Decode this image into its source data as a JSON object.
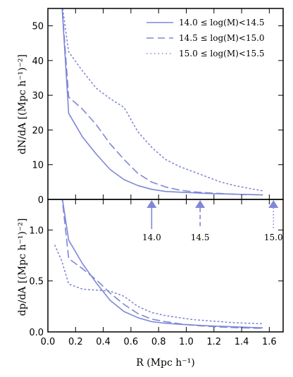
{
  "chart_data": [
    {
      "type": "line",
      "panel": "top",
      "ylabel": "dN/dA [(Mpc h⁻¹)⁻²]",
      "xlim": [
        0.0,
        1.7
      ],
      "ylim": [
        0,
        55
      ],
      "yticks": [
        "0",
        "10",
        "20",
        "30",
        "40",
        "50"
      ],
      "grid": false,
      "legend_position": "top-right",
      "color": "#7f87d6",
      "series": [
        {
          "name": "14.0 ≤ log(M)<14.5",
          "style": "solid",
          "x": [
            0.1,
            0.15,
            0.25,
            0.35,
            0.45,
            0.55,
            0.65,
            0.75,
            0.85,
            0.95,
            1.05,
            1.15,
            1.25,
            1.35,
            1.45,
            1.55
          ],
          "y": [
            57,
            24.8,
            18.0,
            13.0,
            8.6,
            5.7,
            4.0,
            2.9,
            2.3,
            2.1,
            1.9,
            1.7,
            1.6,
            1.5,
            1.4,
            1.3
          ]
        },
        {
          "name": "14.5 ≤ log(M)<15.0",
          "style": "dashed",
          "x": [
            0.1,
            0.15,
            0.25,
            0.35,
            0.45,
            0.55,
            0.65,
            0.75,
            0.85,
            0.95,
            1.05,
            1.15,
            1.25,
            1.35,
            1.45,
            1.55
          ],
          "y": [
            57,
            29.5,
            26.0,
            21.5,
            16.0,
            11.5,
            7.5,
            5.0,
            3.6,
            2.7,
            2.2,
            1.9,
            1.7,
            1.5,
            1.4,
            1.3
          ]
        },
        {
          "name": "15.0 ≤ log(M)<15.5",
          "style": "dotted",
          "x": [
            0.1,
            0.15,
            0.25,
            0.35,
            0.45,
            0.55,
            0.65,
            0.75,
            0.85,
            0.95,
            1.05,
            1.15,
            1.25,
            1.35,
            1.45,
            1.55
          ],
          "y": [
            57,
            42.5,
            37.0,
            32.0,
            29.0,
            26.5,
            19.5,
            15.0,
            11.5,
            9.5,
            8.0,
            6.5,
            5.0,
            4.0,
            3.2,
            2.5
          ]
        }
      ],
      "markers": [
        {
          "x": 0.75,
          "label": "14.0",
          "style": "solid"
        },
        {
          "x": 1.1,
          "label": "14.5",
          "style": "dashed"
        },
        {
          "x": 1.63,
          "label": "15.0",
          "style": "dotted"
        }
      ]
    },
    {
      "type": "line",
      "panel": "bottom",
      "xlabel": "R (Mpc h⁻¹)",
      "ylabel": "dp/dA [(Mpc h⁻¹)⁻²]",
      "xlim": [
        0.0,
        1.7
      ],
      "ylim": [
        0,
        1.3
      ],
      "xticks": [
        "0.0",
        "0.2",
        "0.4",
        "0.6",
        "0.8",
        "1.0",
        "1.2",
        "1.4",
        "1.6"
      ],
      "yticks": [
        "0.0",
        "0.5",
        "1.0"
      ],
      "grid": false,
      "color": "#7f87d6",
      "series": [
        {
          "style": "solid",
          "x": [
            0.1,
            0.15,
            0.25,
            0.35,
            0.45,
            0.55,
            0.65,
            0.75,
            0.85,
            0.95,
            1.05,
            1.15,
            1.25,
            1.35,
            1.45,
            1.55
          ],
          "y": [
            1.35,
            0.9,
            0.67,
            0.48,
            0.31,
            0.2,
            0.14,
            0.1,
            0.085,
            0.075,
            0.068,
            0.06,
            0.055,
            0.05,
            0.045,
            0.04
          ]
        },
        {
          "style": "dashed",
          "x": [
            0.1,
            0.15,
            0.25,
            0.35,
            0.45,
            0.55,
            0.65,
            0.75,
            0.85,
            0.95,
            1.05,
            1.15,
            1.25,
            1.35,
            1.45,
            1.55
          ],
          "y": [
            1.35,
            0.72,
            0.62,
            0.51,
            0.38,
            0.27,
            0.18,
            0.125,
            0.1,
            0.08,
            0.065,
            0.055,
            0.048,
            0.042,
            0.038,
            0.035
          ]
        },
        {
          "style": "dotted",
          "x": [
            0.05,
            0.1,
            0.15,
            0.25,
            0.35,
            0.45,
            0.55,
            0.65,
            0.75,
            0.85,
            0.95,
            1.05,
            1.15,
            1.25,
            1.35,
            1.45,
            1.55
          ],
          "y": [
            0.85,
            0.7,
            0.47,
            0.42,
            0.41,
            0.4,
            0.35,
            0.25,
            0.19,
            0.16,
            0.14,
            0.12,
            0.11,
            0.1,
            0.09,
            0.085,
            0.08
          ]
        }
      ]
    }
  ]
}
